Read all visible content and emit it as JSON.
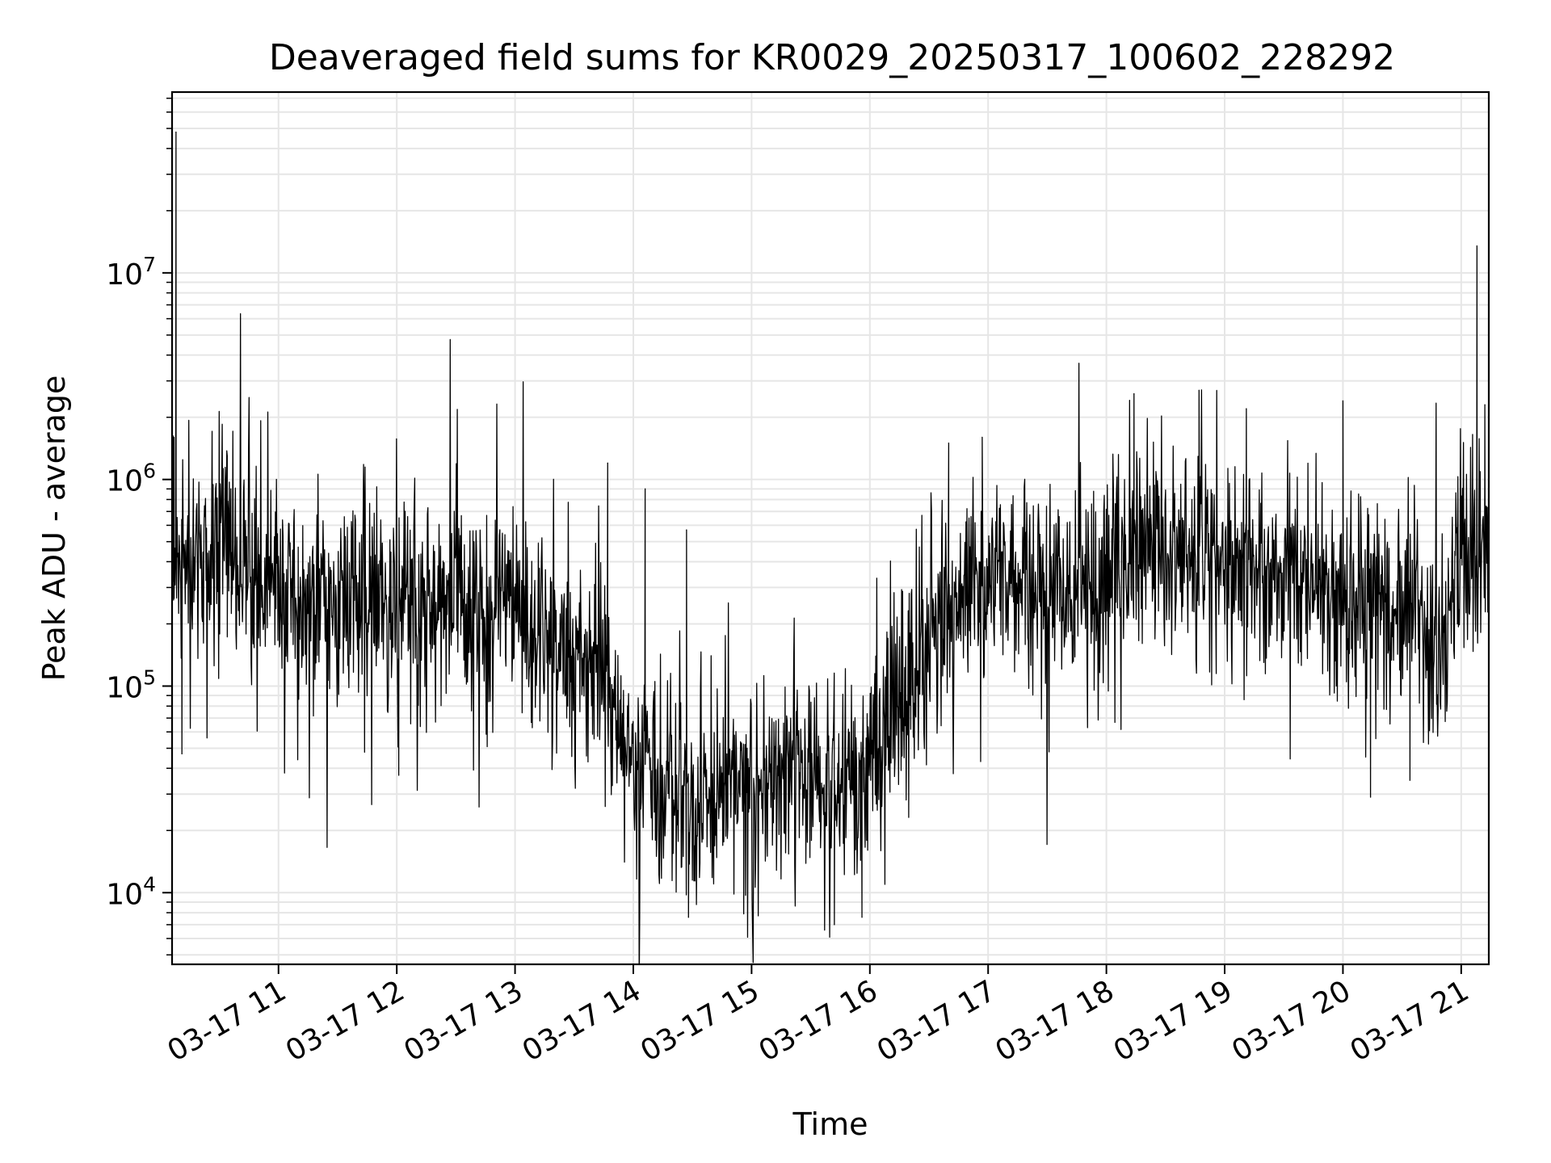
{
  "chart_data": {
    "type": "line",
    "title": "Deaveraged field sums for KR0029_20250317_100602_228292",
    "xlabel": "Time",
    "ylabel": "Peak ADU - average",
    "yscale": "log",
    "ylim": [
      4500,
      75000000
    ],
    "xlim": [
      "2025-03-17 10:06",
      "2025-03-17 21:14"
    ],
    "grid": true,
    "line_color": "#000000",
    "grid_color": "#e6e6e6",
    "x_ticks": [
      "03-17 11",
      "03-17 12",
      "03-17 13",
      "03-17 14",
      "03-17 15",
      "03-17 16",
      "03-17 17",
      "03-17 18",
      "03-17 19",
      "03-17 20",
      "03-17 21"
    ],
    "y_ticks": [
      {
        "base": "10",
        "exp": "4",
        "value": 10000
      },
      {
        "base": "10",
        "exp": "5",
        "value": 100000
      },
      {
        "base": "10",
        "exp": "6",
        "value": 1000000
      },
      {
        "base": "10",
        "exp": "7",
        "value": 10000000
      }
    ],
    "x": [
      "2025-03-17 10:06",
      "2025-03-17 10:15",
      "2025-03-17 10:30",
      "2025-03-17 10:40",
      "2025-03-17 11:00",
      "2025-03-17 11:30",
      "2025-03-17 12:00",
      "2025-03-17 12:30",
      "2025-03-17 13:00",
      "2025-03-17 13:20",
      "2025-03-17 13:40",
      "2025-03-17 14:00",
      "2025-03-17 14:20",
      "2025-03-17 14:40",
      "2025-03-17 15:00",
      "2025-03-17 15:20",
      "2025-03-17 15:40",
      "2025-03-17 16:00",
      "2025-03-17 16:30",
      "2025-03-17 17:00",
      "2025-03-17 17:30",
      "2025-03-17 18:00",
      "2025-03-17 18:30",
      "2025-03-17 19:00",
      "2025-03-17 19:30",
      "2025-03-17 20:00",
      "2025-03-17 20:30",
      "2025-03-17 20:50",
      "2025-03-17 21:00",
      "2025-03-17 21:14"
    ],
    "series": [
      {
        "values": [
          400000,
          350000,
          600000,
          300000,
          280000,
          260000,
          240000,
          250000,
          220000,
          150000,
          110000,
          50000,
          28000,
          25000,
          35000,
          40000,
          30000,
          40000,
          200000,
          350000,
          300000,
          350000,
          450000,
          400000,
          350000,
          300000,
          250000,
          150000,
          400000,
          500000
        ]
      }
    ],
    "spikes": [
      {
        "x": "2025-03-17 10:08",
        "y": 48000000
      },
      {
        "x": "2025-03-17 10:07",
        "y": 1600000
      },
      {
        "x": "2025-03-17 10:34",
        "y": 1300000
      },
      {
        "x": "2025-03-17 13:47",
        "y": 1200000
      },
      {
        "x": "2025-03-17 14:06",
        "y": 900000
      },
      {
        "x": "2025-03-17 14:27",
        "y": 570000
      },
      {
        "x": "2025-03-17 16:40",
        "y": 1500000
      },
      {
        "x": "2025-03-17 16:57",
        "y": 1600000
      },
      {
        "x": "2025-03-17 18:14",
        "y": 2600000
      },
      {
        "x": "2025-03-17 18:47",
        "y": 2700000
      },
      {
        "x": "2025-03-17 19:11",
        "y": 2200000
      },
      {
        "x": "2025-03-17 20:00",
        "y": 2400000
      },
      {
        "x": "2025-03-17 21:08",
        "y": 13500000
      },
      {
        "x": "2025-03-17 21:12",
        "y": 2300000
      },
      {
        "x": "2025-03-17 10:11",
        "y": 47000
      },
      {
        "x": "2025-03-17 12:01",
        "y": 37000
      },
      {
        "x": "2025-03-17 14:28",
        "y": 7600
      },
      {
        "x": "2025-03-17 14:56",
        "y": 7900
      },
      {
        "x": "2025-03-17 15:42",
        "y": 7000
      },
      {
        "x": "2025-03-17 15:56",
        "y": 7600
      },
      {
        "x": "2025-03-17 20:14",
        "y": 29000
      },
      {
        "x": "2025-03-17 20:34",
        "y": 35000
      }
    ]
  }
}
